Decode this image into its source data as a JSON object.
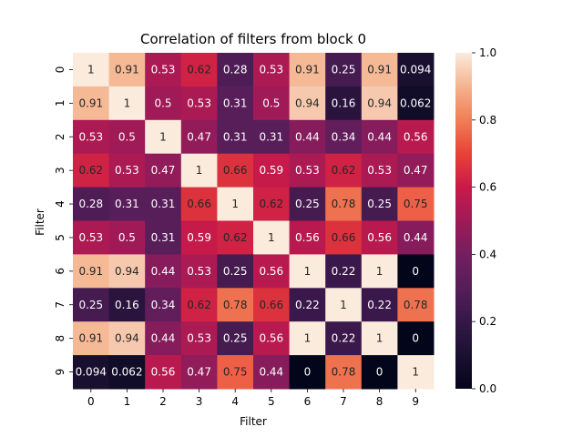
{
  "chart_data": {
    "type": "heatmap",
    "title": "Correlation of filters from block 0",
    "xlabel": "Filter",
    "ylabel": "Filter",
    "x_categories": [
      "0",
      "1",
      "2",
      "3",
      "4",
      "5",
      "6",
      "7",
      "8",
      "9"
    ],
    "y_categories": [
      "0",
      "1",
      "2",
      "3",
      "4",
      "5",
      "6",
      "7",
      "8",
      "9"
    ],
    "values": [
      [
        1,
        0.91,
        0.53,
        0.62,
        0.28,
        0.53,
        0.91,
        0.25,
        0.91,
        0.094
      ],
      [
        0.91,
        1,
        0.5,
        0.53,
        0.31,
        0.5,
        0.94,
        0.16,
        0.94,
        0.062
      ],
      [
        0.53,
        0.5,
        1,
        0.47,
        0.31,
        0.31,
        0.44,
        0.34,
        0.44,
        0.56
      ],
      [
        0.62,
        0.53,
        0.47,
        1,
        0.66,
        0.59,
        0.53,
        0.62,
        0.53,
        0.47
      ],
      [
        0.28,
        0.31,
        0.31,
        0.66,
        1,
        0.62,
        0.25,
        0.78,
        0.25,
        0.75
      ],
      [
        0.53,
        0.5,
        0.31,
        0.59,
        0.62,
        1,
        0.56,
        0.66,
        0.56,
        0.44
      ],
      [
        0.91,
        0.94,
        0.44,
        0.53,
        0.25,
        0.56,
        1,
        0.22,
        1,
        0
      ],
      [
        0.25,
        0.16,
        0.34,
        0.62,
        0.78,
        0.66,
        0.22,
        1,
        0.22,
        0.78
      ],
      [
        0.91,
        0.94,
        0.44,
        0.53,
        0.25,
        0.56,
        1,
        0.22,
        1,
        0
      ],
      [
        0.094,
        0.062,
        0.56,
        0.47,
        0.75,
        0.44,
        0,
        0.78,
        0,
        1
      ]
    ],
    "colorbar": {
      "min": 0,
      "max": 1,
      "ticks": [
        "0.0",
        "0.2",
        "0.4",
        "0.6",
        "0.8",
        "1.0"
      ],
      "colormap": "rocket"
    },
    "grid": false,
    "legend": "colorbar-right"
  }
}
